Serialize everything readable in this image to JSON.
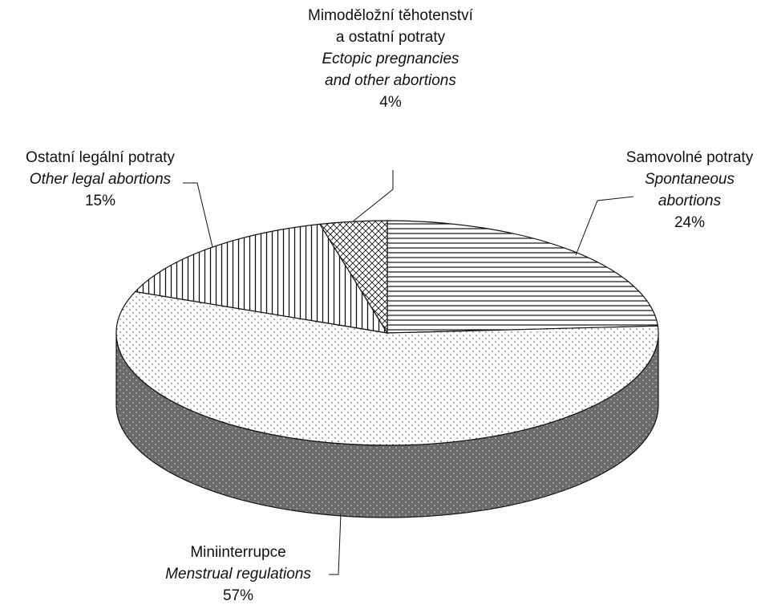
{
  "chart_data": {
    "type": "pie",
    "categories": [
      "Samovolné potraty",
      "Miniinterrupce",
      "Ostatní legální potraty",
      "Mimoděložní těhotenství a ostatní potraty"
    ],
    "categories_en": [
      "Spontaneous abortions",
      "Menstrual regulations",
      "Other legal abortions",
      "Ectopic pregnancies and other abortions"
    ],
    "values": [
      24,
      57,
      15,
      4
    ],
    "value_labels": [
      "24%",
      "57%",
      "15%",
      "4%"
    ],
    "three_d": true
  }
}
